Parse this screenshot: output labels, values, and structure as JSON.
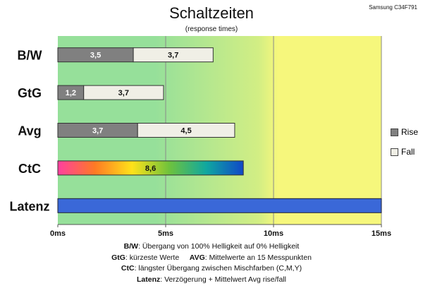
{
  "header": {
    "title": "Schaltzeiten",
    "subtitle": "(response times)",
    "model": "Samsung C34F791"
  },
  "legend": {
    "rise": "Rise",
    "fall": "Fall"
  },
  "footer": {
    "line1_label": "B/W",
    "line1_text": ": Übergang von 100% Helligkeit auf 0% Helligkeit",
    "line2_label_a": "GtG",
    "line2_text_a": ": kürzeste Werte",
    "line2_label_b": "AVG",
    "line2_text_b": ": Mittelwerte an 15 Messpunkten",
    "line3_label": "CtC",
    "line3_text": ": längster Übergang zwischen Mischfarben (C,M,Y)",
    "line4_label": "Latenz",
    "line4_text": ": Verzögerung + Mittelwert Avg rise/fall"
  },
  "chart_data": {
    "type": "bar",
    "orientation": "horizontal",
    "stacked": true,
    "categories": [
      "B/W",
      "GtG",
      "Avg",
      "CtC",
      "Latenz"
    ],
    "series": [
      {
        "name": "Rise",
        "values": [
          3.5,
          1.2,
          3.7,
          null,
          null
        ]
      },
      {
        "name": "Fall",
        "values": [
          3.7,
          3.7,
          4.5,
          null,
          null
        ]
      }
    ],
    "ctc_value": 8.6,
    "latency_value": 15,
    "xlim": [
      0,
      15
    ],
    "xticks": [
      0,
      5,
      10,
      15
    ],
    "xtick_labels": [
      "0ms",
      "5ms",
      "10ms",
      "15ms"
    ],
    "grid": true,
    "legend_position": "right",
    "colors": {
      "rise": "#808080",
      "fall": "#f0efe6",
      "latency": "#3a68d8",
      "bg_left": "#96e09a",
      "bg_right": "#f6f77c",
      "ctc_gradient": [
        "#ff3fa0",
        "#ff7a24",
        "#ffe21a",
        "#6fc23c",
        "#10a8a0",
        "#1048c8"
      ]
    }
  }
}
